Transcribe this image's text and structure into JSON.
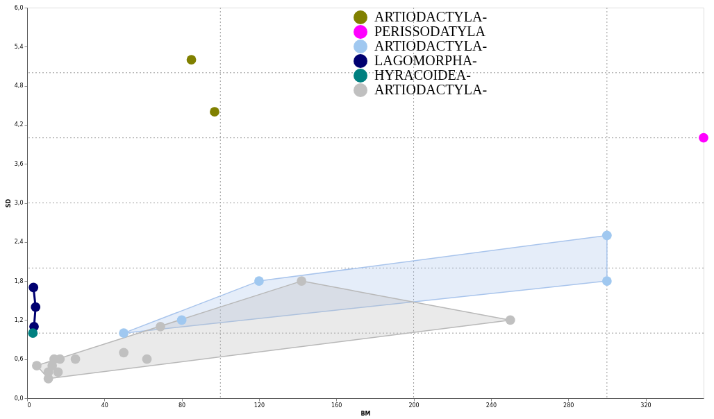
{
  "chart_data": {
    "type": "scatter",
    "xlabel": "BM",
    "ylabel": "SD",
    "xlim": [
      0,
      350
    ],
    "ylim": [
      0,
      6
    ],
    "xticks": [
      0,
      40,
      80,
      120,
      160,
      200,
      240,
      280,
      320
    ],
    "yticks": [
      {
        "value": 0,
        "label": "0,0"
      },
      {
        "value": 0.6,
        "label": "0,6"
      },
      {
        "value": 1.2,
        "label": "1,2"
      },
      {
        "value": 1.8,
        "label": "1,8"
      },
      {
        "value": 2.4,
        "label": "2,4"
      },
      {
        "value": 3.0,
        "label": "3,0"
      },
      {
        "value": 3.6,
        "label": "3,6"
      },
      {
        "value": 4.2,
        "label": "4,2"
      },
      {
        "value": 4.8,
        "label": "4,8"
      },
      {
        "value": 5.4,
        "label": "5,4"
      },
      {
        "value": 6.0,
        "label": "6,0"
      }
    ],
    "legend": "top",
    "marker": "circle",
    "ref_lines": [
      {
        "axis": "x",
        "value": 100,
        "color": "#999999",
        "line_style": "dotted"
      },
      {
        "axis": "x",
        "value": 200,
        "color": "#999999",
        "line_style": "dotted"
      },
      {
        "axis": "x",
        "value": 300,
        "color": "#999999",
        "line_style": "dotted"
      },
      {
        "axis": "y",
        "value": 1,
        "color": "#999999",
        "line_style": "dotted"
      },
      {
        "axis": "y",
        "value": 2,
        "color": "#999999",
        "line_style": "dotted"
      },
      {
        "axis": "y",
        "value": 3,
        "color": "#999999",
        "line_style": "dotted"
      },
      {
        "axis": "y",
        "value": 4,
        "color": "#999999",
        "line_style": "dotted"
      },
      {
        "axis": "y",
        "value": 5,
        "color": "#999999",
        "line_style": "dotted"
      }
    ],
    "series": [
      {
        "type": "area",
        "marker": "none",
        "color": "#a8c4ec",
        "x": [
          50,
          120,
          300,
          300,
          50
        ],
        "values": [
          1.0,
          1.8,
          2.5,
          1.8,
          1.0
        ]
      },
      {
        "type": "area",
        "marker": "none",
        "color": "#b8b8b8",
        "x": [
          11,
          5,
          142,
          250,
          11
        ],
        "values": [
          0.3,
          0.5,
          1.8,
          1.2,
          0.3
        ]
      },
      {
        "name": "ARTIODACTYLA-",
        "color": "#808000",
        "x": [
          85,
          97
        ],
        "values": [
          5.2,
          4.4
        ]
      },
      {
        "name": "PERISSODATYLA",
        "color": "#ff00ff",
        "x": [
          350
        ],
        "values": [
          4.0
        ]
      },
      {
        "name": "ARTIODACTYLA-",
        "color": "#a0c8f0",
        "x": [
          50,
          80,
          120,
          300,
          300
        ],
        "values": [
          1.0,
          1.2,
          1.8,
          2.5,
          1.8
        ]
      },
      {
        "name": "LAGOMORPHA-",
        "type": "line",
        "color": "#000070",
        "x": [
          3.3,
          4.4,
          3.6
        ],
        "values": [
          1.7,
          1.4,
          1.1
        ]
      },
      {
        "name": "HYRACOIDEA-",
        "color": "#008080",
        "x": [
          3
        ],
        "values": [
          1.0
        ]
      },
      {
        "name": "ARTIODACTYLA-",
        "color": "#c0c0c0",
        "x": [
          5,
          11,
          11,
          13,
          14,
          16,
          17,
          25,
          50,
          62,
          69,
          142,
          250
        ],
        "values": [
          0.5,
          0.4,
          0.3,
          0.5,
          0.6,
          0.4,
          0.6,
          0.6,
          0.7,
          0.6,
          1.1,
          1.8,
          1.2
        ]
      }
    ]
  }
}
